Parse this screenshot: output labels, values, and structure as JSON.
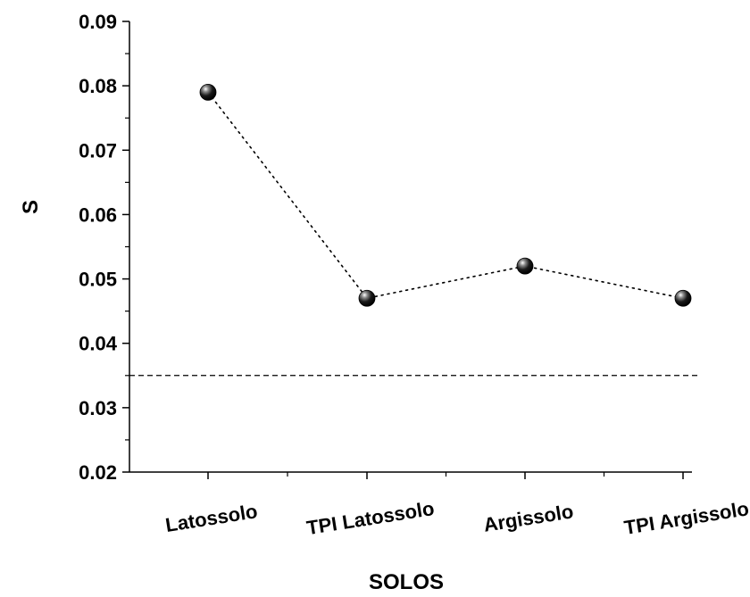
{
  "chart_data": {
    "type": "line",
    "xlabel": "SOLOS",
    "ylabel": "S",
    "categories": [
      "Latossolo",
      "TPI Latossolo",
      "Argissolo",
      "TPI Argissolo"
    ],
    "series": [
      {
        "values": [
          0.079,
          0.047,
          0.052,
          0.047
        ]
      }
    ],
    "reference_lines": [
      {
        "y": 0.035,
        "style": "dashed"
      }
    ],
    "ylim": [
      0.02,
      0.09
    ],
    "yticks": [
      "0.02",
      "0.03",
      "0.04",
      "0.05",
      "0.06",
      "0.07",
      "0.08",
      "0.09"
    ],
    "grid": false,
    "line_style": "dotted",
    "marker": "sphere",
    "colors": {
      "marker": "#000000",
      "line": "#000000"
    }
  }
}
